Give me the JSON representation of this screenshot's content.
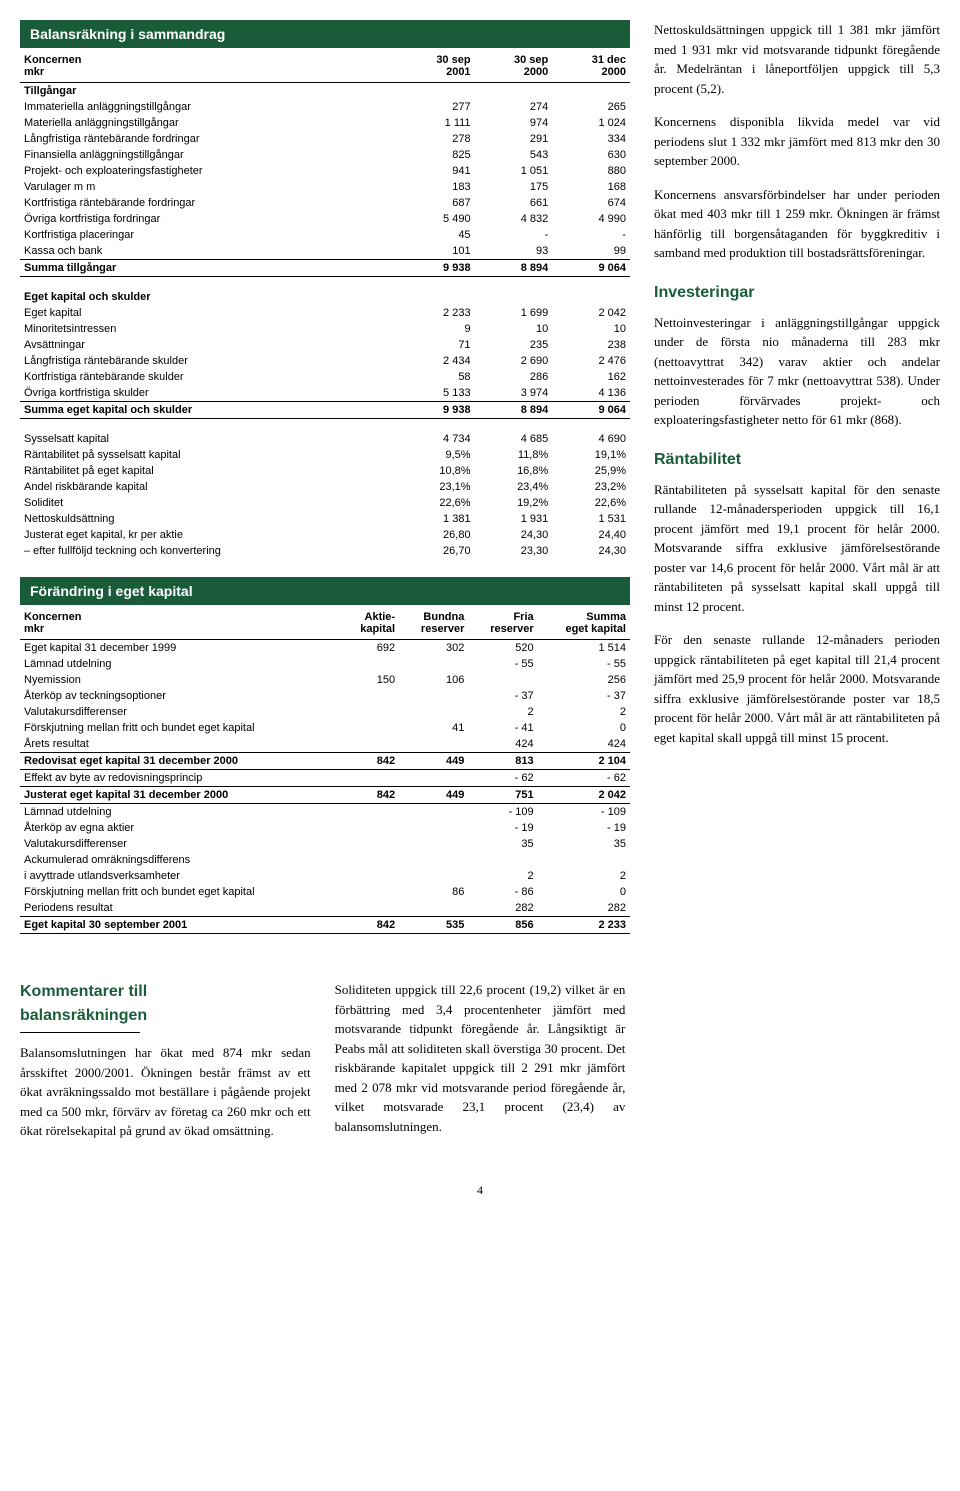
{
  "balance": {
    "title": "Balansräkning i sammandrag",
    "header": {
      "l1": "Koncernen",
      "l2": "mkr",
      "c1a": "30 sep",
      "c1b": "2001",
      "c2a": "30 sep",
      "c2b": "2000",
      "c3a": "31 dec",
      "c3b": "2000"
    },
    "assets_label": "Tillgångar",
    "assets": [
      {
        "label": "Immateriella anläggningstillgångar",
        "v": [
          "277",
          "274",
          "265"
        ]
      },
      {
        "label": "Materiella anläggningstillgångar",
        "v": [
          "1 111",
          "974",
          "1 024"
        ]
      },
      {
        "label": "Långfristiga räntebärande fordringar",
        "v": [
          "278",
          "291",
          "334"
        ]
      },
      {
        "label": "Finansiella anläggningstillgångar",
        "v": [
          "825",
          "543",
          "630"
        ]
      },
      {
        "label": "Projekt- och exploateringsfastigheter",
        "v": [
          "941",
          "1 051",
          "880"
        ]
      },
      {
        "label": "Varulager m m",
        "v": [
          "183",
          "175",
          "168"
        ]
      },
      {
        "label": "Kortfristiga räntebärande fordringar",
        "v": [
          "687",
          "661",
          "674"
        ]
      },
      {
        "label": "Övriga kortfristiga fordringar",
        "v": [
          "5 490",
          "4 832",
          "4 990"
        ]
      },
      {
        "label": "Kortfristiga placeringar",
        "v": [
          "45",
          "-",
          "-"
        ]
      },
      {
        "label": "Kassa och bank",
        "v": [
          "101",
          "93",
          "99"
        ]
      }
    ],
    "assets_sum": {
      "label": "Summa tillgångar",
      "v": [
        "9 938",
        "8 894",
        "9 064"
      ]
    },
    "equity_label": "Eget kapital och skulder",
    "equity": [
      {
        "label": "Eget kapital",
        "v": [
          "2 233",
          "1 699",
          "2 042"
        ]
      },
      {
        "label": "Minoritetsintressen",
        "v": [
          "9",
          "10",
          "10"
        ]
      },
      {
        "label": "Avsättningar",
        "v": [
          "71",
          "235",
          "238"
        ]
      },
      {
        "label": "Långfristiga räntebärande skulder",
        "v": [
          "2 434",
          "2 690",
          "2 476"
        ]
      },
      {
        "label": "Kortfristiga räntebärande skulder",
        "v": [
          "58",
          "286",
          "162"
        ]
      },
      {
        "label": "Övriga kortfristiga skulder",
        "v": [
          "5 133",
          "3 974",
          "4 136"
        ]
      }
    ],
    "equity_sum": {
      "label": "Summa eget kapital och skulder",
      "v": [
        "9 938",
        "8 894",
        "9 064"
      ]
    },
    "ratios": [
      {
        "label": "Sysselsatt kapital",
        "v": [
          "4 734",
          "4 685",
          "4 690"
        ]
      },
      {
        "label": "Räntabilitet på sysselsatt kapital",
        "v": [
          "9,5%",
          "11,8%",
          "19,1%"
        ]
      },
      {
        "label": "Räntabilitet på eget kapital",
        "v": [
          "10,8%",
          "16,8%",
          "25,9%"
        ]
      },
      {
        "label": "Andel riskbärande kapital",
        "v": [
          "23,1%",
          "23,4%",
          "23,2%"
        ]
      },
      {
        "label": "Soliditet",
        "v": [
          "22,6%",
          "19,2%",
          "22,6%"
        ]
      },
      {
        "label": "Nettoskuldsättning",
        "v": [
          "1 381",
          "1 931",
          "1 531"
        ]
      },
      {
        "label": "Justerat eget kapital, kr per aktie",
        "v": [
          "26,80",
          "24,30",
          "24,40"
        ]
      },
      {
        "label": "– efter fullföljd teckning och konvertering",
        "v": [
          "26,70",
          "23,30",
          "24,30"
        ]
      }
    ]
  },
  "change": {
    "title": "Förändring i eget kapital",
    "header": {
      "l1": "Koncernen",
      "l2": "mkr",
      "c1a": "Aktie-",
      "c1b": "kapital",
      "c2a": "Bundna",
      "c2b": "reserver",
      "c3a": "Fria",
      "c3b": "reserver",
      "c4a": "Summa",
      "c4b": "eget kapital"
    },
    "rows1": [
      {
        "label": "Eget kapital 31 december 1999",
        "v": [
          "692",
          "302",
          "520",
          "1 514"
        ],
        "rule": true
      },
      {
        "label": "Lämnad utdelning",
        "v": [
          "",
          "",
          "- 55",
          "- 55"
        ]
      },
      {
        "label": "Nyemission",
        "v": [
          "150",
          "106",
          "",
          "256"
        ]
      },
      {
        "label": "Återköp av teckningsoptioner",
        "v": [
          "",
          "",
          "- 37",
          "- 37"
        ]
      },
      {
        "label": "Valutakursdifferenser",
        "v": [
          "",
          "",
          "2",
          "2"
        ]
      },
      {
        "label": "Förskjutning mellan fritt och bundet eget kapital",
        "v": [
          "",
          "41",
          "- 41",
          "0"
        ]
      },
      {
        "label": "Årets resultat",
        "v": [
          "",
          "",
          "424",
          "424"
        ]
      }
    ],
    "sum1": {
      "label": "Redovisat eget kapital 31 december 2000",
      "v": [
        "842",
        "449",
        "813",
        "2 104"
      ]
    },
    "adj": {
      "label": "Effekt av byte av redovisningsprincip",
      "v": [
        "",
        "",
        "- 62",
        "- 62"
      ]
    },
    "sum2": {
      "label": "Justerat eget kapital 31 december 2000",
      "v": [
        "842",
        "449",
        "751",
        "2 042"
      ]
    },
    "rows2": [
      {
        "label": "Lämnad utdelning",
        "v": [
          "",
          "",
          "- 109",
          "- 109"
        ]
      },
      {
        "label": "Återköp av egna aktier",
        "v": [
          "",
          "",
          "- 19",
          "- 19"
        ]
      },
      {
        "label": "Valutakursdifferenser",
        "v": [
          "",
          "",
          "35",
          "35"
        ]
      },
      {
        "label": "Ackumulerad omräkningsdifferens",
        "v": [
          "",
          "",
          "",
          ""
        ]
      },
      {
        "label": "  i avyttrade utlandsverksamheter",
        "v": [
          "",
          "",
          "2",
          "2"
        ]
      },
      {
        "label": "Förskjutning mellan fritt och bundet eget kapital",
        "v": [
          "",
          "86",
          "- 86",
          "0"
        ]
      },
      {
        "label": "Periodens resultat",
        "v": [
          "",
          "",
          "282",
          "282"
        ]
      }
    ],
    "sum3": {
      "label": "Eget kapital 30 september 2001",
      "v": [
        "842",
        "535",
        "856",
        "2 233"
      ]
    }
  },
  "narrative": {
    "p1": "Nettoskuldsättningen uppgick till 1 381 mkr jämfört med 1 931 mkr vid motsvarande tidpunkt föregående år. Medelräntan i låneportföljen uppgick till 5,3 procent (5,2).",
    "p2": "Koncernens disponibla likvida medel var vid periodens slut 1 332 mkr jämfört med 813 mkr den 30 september 2000.",
    "p3": "Koncernens ansvarsförbindelser har under perioden ökat med 403 mkr till 1 259 mkr. Ökningen är främst hänförlig till borgensåtaganden för byggkreditiv i samband med produktion till bostadsrättsföreningar.",
    "h_inv": "Investeringar",
    "p_inv": "Nettoinvesteringar i anläggningstillgångar uppgick under de första nio månaderna till 283 mkr (nettoavyttrat 342) varav aktier och andelar nettoinvesterades för 7 mkr (nettoavyttrat 538). Under perioden förvärvades projekt- och exploateringsfastigheter netto för 61 mkr (868).",
    "h_rant": "Räntabilitet",
    "p_rant1": "Räntabiliteten på sysselsatt kapital för den senaste rullande 12-månadersperioden uppgick till 16,1 procent jämfört med 19,1 procent för helår 2000. Motsvarande siffra exklusive jämförelsestörande poster var 14,6 procent för helår 2000. Vårt mål är att räntabiliteten på sysselsatt kapital skall uppgå till minst 12 procent.",
    "p_rant2": "För den senaste rullande 12-månaders perioden uppgick räntabiliteten på eget kapital till 21,4 procent jämfört med 25,9 procent för helår 2000. Motsvarande siffra exklusive jämförelsestörande poster var 18,5 procent för helår 2000. Vårt mål är att räntabiliteten på eget kapital skall uppgå till minst 15 procent."
  },
  "comments": {
    "h1": "Kommentarer till",
    "h2": "balansräkningen",
    "p1": "Balansomslutningen har ökat med 874 mkr sedan årsskiftet 2000/2001. Ökningen består främst av ett ökat avräkningssaldo mot beställare i pågående projekt med ca 500 mkr, förvärv av företag ca 260 mkr och ett ökat rörelsekapital på grund av ökad omsättning.",
    "p2": "Soliditeten uppgick till 22,6 procent (19,2) vilket är en förbättring med 3,4 procentenheter jämfört med motsvarande tidpunkt föregående år. Långsiktigt är Peabs mål att soliditeten skall överstiga 30 procent. Det riskbärande kapitalet uppgick till 2 291 mkr jämfört med 2 078 mkr vid motsvarande period föregående år, vilket motsvarade 23,1 procent (23,4) av balansomslutningen."
  },
  "page_number": "4"
}
